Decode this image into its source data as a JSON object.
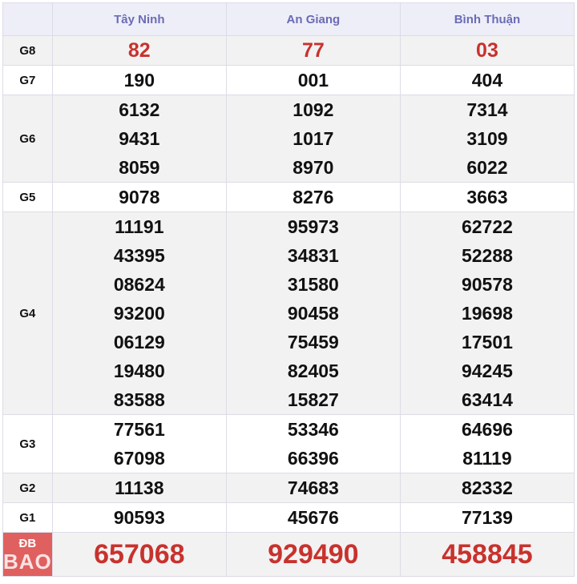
{
  "provinces": [
    "Tây Ninh",
    "An Giang",
    "Bình Thuận"
  ],
  "prizes": [
    {
      "label": "G8",
      "values": [
        [
          "82"
        ],
        [
          "77"
        ],
        [
          "03"
        ]
      ]
    },
    {
      "label": "G7",
      "values": [
        [
          "190"
        ],
        [
          "001"
        ],
        [
          "404"
        ]
      ]
    },
    {
      "label": "G6",
      "values": [
        [
          "6132",
          "9431",
          "8059"
        ],
        [
          "1092",
          "1017",
          "8970"
        ],
        [
          "7314",
          "3109",
          "6022"
        ]
      ]
    },
    {
      "label": "G5",
      "values": [
        [
          "9078"
        ],
        [
          "8276"
        ],
        [
          "3663"
        ]
      ]
    },
    {
      "label": "G4",
      "values": [
        [
          "11191",
          "43395",
          "08624",
          "93200",
          "06129",
          "19480",
          "83588"
        ],
        [
          "95973",
          "34831",
          "31580",
          "90458",
          "75459",
          "82405",
          "15827"
        ],
        [
          "62722",
          "52288",
          "90578",
          "19698",
          "17501",
          "94245",
          "63414"
        ]
      ]
    },
    {
      "label": "G3",
      "values": [
        [
          "77561",
          "67098"
        ],
        [
          "53346",
          "66396"
        ],
        [
          "64696",
          "81119"
        ]
      ]
    },
    {
      "label": "G2",
      "values": [
        [
          "11138"
        ],
        [
          "74683"
        ],
        [
          "82332"
        ]
      ]
    },
    {
      "label": "G1",
      "values": [
        [
          "90593"
        ],
        [
          "45676"
        ],
        [
          "77139"
        ]
      ]
    },
    {
      "label": "ĐB",
      "values": [
        [
          "657068"
        ],
        [
          "929490"
        ],
        [
          "458845"
        ]
      ]
    }
  ],
  "watermark": "BAO",
  "colors": {
    "header_text": "#6b6bb5",
    "highlight": "#c8322d",
    "db_label_bg": "#e06060"
  }
}
